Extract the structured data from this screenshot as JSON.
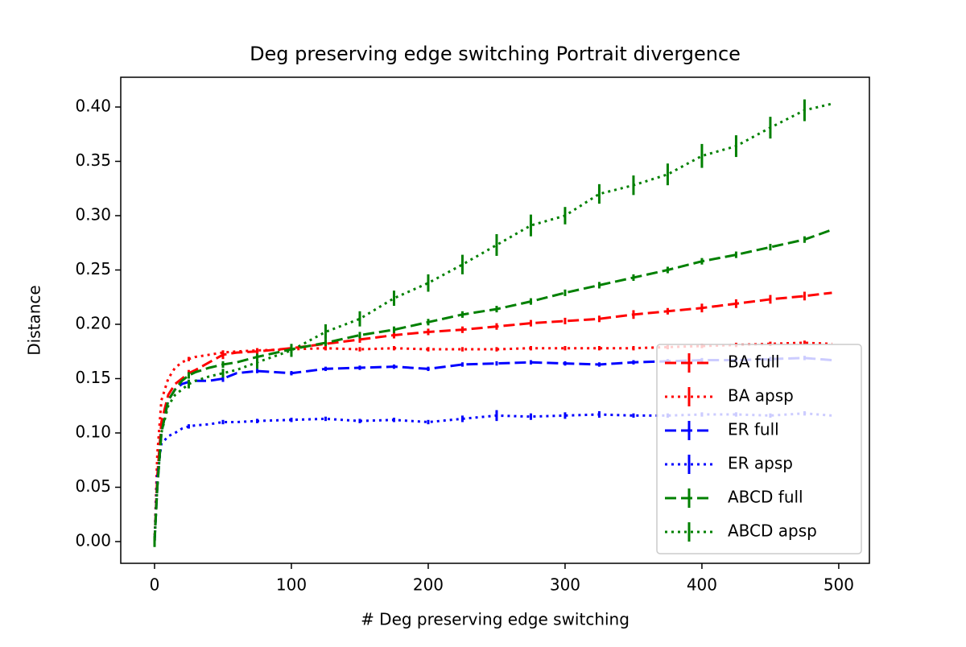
{
  "chart_data": {
    "type": "line",
    "title": "Deg preserving edge switching Portrait divergence",
    "xlabel": "# Deg preserving edge switching",
    "ylabel": "Distance",
    "x": [
      0,
      2,
      5,
      10,
      15,
      20,
      25,
      30,
      40,
      50,
      60,
      75,
      100,
      125,
      150,
      175,
      200,
      225,
      250,
      275,
      300,
      325,
      350,
      375,
      400,
      425,
      450,
      475,
      495
    ],
    "series": [
      {
        "name": "BA full",
        "color": "#ff0000",
        "style": "dashed",
        "values": [
          0,
          0.06,
          0.11,
          0.135,
          0.145,
          0.15,
          0.155,
          0.158,
          0.165,
          0.172,
          0.174,
          0.175,
          0.178,
          0.182,
          0.186,
          0.19,
          0.193,
          0.195,
          0.198,
          0.201,
          0.203,
          0.205,
          0.209,
          0.212,
          0.215,
          0.219,
          0.223,
          0.226,
          0.229
        ],
        "errors": [
          0.003,
          null,
          null,
          null,
          null,
          null,
          0.003,
          null,
          null,
          0.004,
          null,
          0.003,
          0.003,
          0.003,
          0.003,
          0.003,
          0.003,
          0.003,
          0.003,
          0.003,
          0.003,
          0.003,
          0.004,
          0.003,
          0.004,
          0.004,
          0.004,
          0.004,
          null
        ]
      },
      {
        "name": "BA apsp",
        "color": "#ff0000",
        "style": "dotted",
        "values": [
          0,
          0.08,
          0.13,
          0.15,
          0.16,
          0.165,
          0.168,
          0.17,
          0.172,
          0.174,
          0.175,
          0.176,
          0.177,
          0.178,
          0.177,
          0.178,
          0.177,
          0.177,
          0.177,
          0.178,
          0.178,
          0.178,
          0.178,
          0.179,
          0.18,
          0.181,
          0.182,
          0.183,
          0.182
        ],
        "errors": [
          0.003,
          null,
          null,
          null,
          null,
          null,
          0.002,
          null,
          null,
          0.002,
          null,
          0.002,
          0.002,
          0.002,
          0.002,
          0.002,
          0.002,
          0.002,
          0.002,
          0.002,
          0.002,
          0.002,
          0.002,
          0.002,
          0.002,
          0.002,
          0.002,
          0.002,
          null
        ]
      },
      {
        "name": "ER full",
        "color": "#0000ff",
        "style": "dashed",
        "values": [
          0,
          0.05,
          0.1,
          0.13,
          0.14,
          0.145,
          0.147,
          0.148,
          0.148,
          0.15,
          0.155,
          0.157,
          0.155,
          0.159,
          0.16,
          0.161,
          0.159,
          0.163,
          0.164,
          0.165,
          0.164,
          0.163,
          0.165,
          0.166,
          0.167,
          0.167,
          0.168,
          0.169,
          0.167
        ],
        "errors": [
          0.003,
          null,
          null,
          null,
          null,
          null,
          0.002,
          null,
          null,
          0.003,
          null,
          0.002,
          0.002,
          0.002,
          0.002,
          0.002,
          0.002,
          0.002,
          0.002,
          0.002,
          0.002,
          0.002,
          0.002,
          0.002,
          0.002,
          0.002,
          0.002,
          0.002,
          null
        ]
      },
      {
        "name": "ER apsp",
        "color": "#0000ff",
        "style": "dotted",
        "values": [
          0,
          0.06,
          0.09,
          0.097,
          0.1,
          0.104,
          0.106,
          0.107,
          0.108,
          0.11,
          0.11,
          0.111,
          0.112,
          0.113,
          0.111,
          0.112,
          0.11,
          0.113,
          0.116,
          0.115,
          0.116,
          0.117,
          0.116,
          0.116,
          0.117,
          0.117,
          0.116,
          0.118,
          0.116
        ],
        "errors": [
          0.003,
          null,
          null,
          null,
          null,
          null,
          0.002,
          null,
          null,
          0.002,
          null,
          0.002,
          0.002,
          0.002,
          0.002,
          0.002,
          0.002,
          0.003,
          0.005,
          0.003,
          0.003,
          0.003,
          0.002,
          0.002,
          0.002,
          0.002,
          0.002,
          0.002,
          null
        ]
      },
      {
        "name": "ABCD full",
        "color": "#008000",
        "style": "dashed",
        "values": [
          0,
          0.05,
          0.1,
          0.13,
          0.14,
          0.148,
          0.153,
          0.156,
          0.16,
          0.163,
          0.165,
          0.17,
          0.177,
          0.183,
          0.19,
          0.195,
          0.202,
          0.209,
          0.214,
          0.221,
          0.229,
          0.236,
          0.243,
          0.25,
          0.258,
          0.264,
          0.271,
          0.278,
          0.287
        ],
        "errors": [
          0.004,
          null,
          null,
          null,
          null,
          null,
          0.003,
          null,
          null,
          0.003,
          null,
          0.003,
          0.003,
          0.003,
          0.003,
          0.003,
          0.003,
          0.003,
          0.003,
          0.003,
          0.003,
          0.003,
          0.003,
          0.003,
          0.003,
          0.003,
          0.003,
          0.003,
          null
        ]
      },
      {
        "name": "ABCD apsp",
        "color": "#008000",
        "style": "dotted",
        "values": [
          0,
          0.05,
          0.1,
          0.125,
          0.135,
          0.14,
          0.145,
          0.148,
          0.152,
          0.155,
          0.158,
          0.165,
          0.176,
          0.193,
          0.205,
          0.224,
          0.238,
          0.255,
          0.273,
          0.291,
          0.3,
          0.32,
          0.328,
          0.338,
          0.355,
          0.364,
          0.381,
          0.397,
          0.403
        ],
        "errors": [
          0.005,
          null,
          null,
          null,
          null,
          null,
          0.004,
          null,
          null,
          0.004,
          null,
          0.006,
          0.006,
          0.007,
          0.007,
          0.007,
          0.008,
          0.009,
          0.01,
          0.01,
          0.008,
          0.009,
          0.009,
          0.01,
          0.011,
          0.01,
          0.01,
          0.01,
          null
        ]
      }
    ],
    "xlim": [
      -24.7,
      522.4
    ],
    "ylim": [
      -0.02,
      0.4274
    ],
    "xticks": [
      0,
      100,
      200,
      300,
      400,
      500
    ],
    "yticks": [
      {
        "value": 0,
        "label": "0.00"
      },
      0.05,
      {
        "value": 0.1,
        "label": "0.10"
      },
      0.15,
      {
        "value": 0.2,
        "label": "0.20"
      },
      0.25,
      {
        "value": 0.3,
        "label": "0.30"
      },
      0.35,
      {
        "value": 0.4,
        "label": "0.40"
      }
    ],
    "legend": "lower right"
  }
}
